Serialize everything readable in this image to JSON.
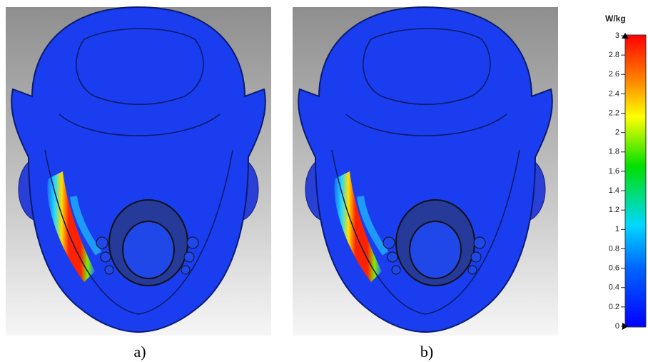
{
  "panels": [
    {
      "label": "a)"
    },
    {
      "label": "b)"
    }
  ],
  "colorbar": {
    "unit": "W/kg",
    "lim": [
      0,
      3
    ],
    "ticks": [
      0,
      0.2,
      0.4,
      0.6,
      0.8,
      1,
      1.2,
      1.4,
      1.6,
      1.8,
      2,
      2.2,
      2.4,
      2.6,
      2.8,
      3
    ]
  }
}
